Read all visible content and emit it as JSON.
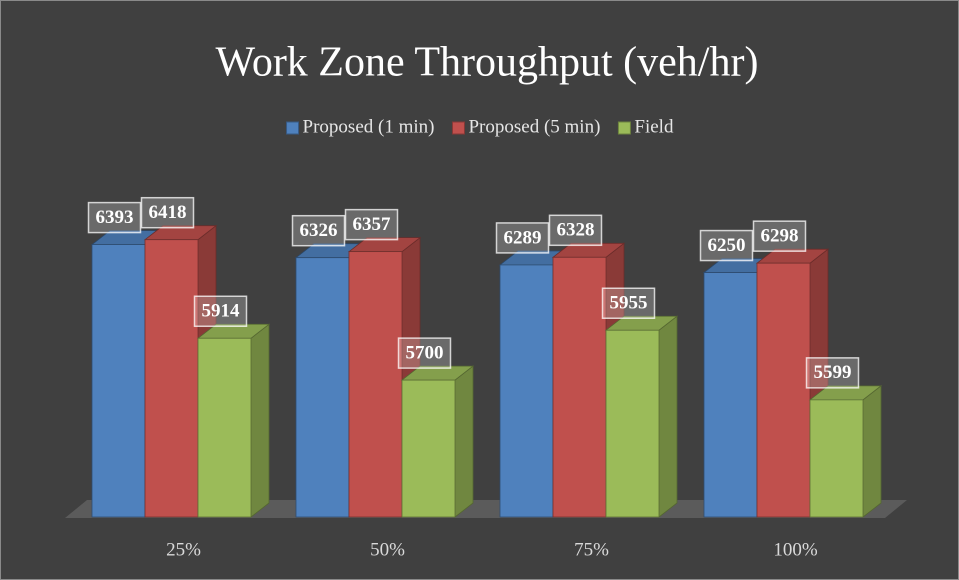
{
  "chart_data": {
    "type": "bar3d",
    "title": "Work Zone Throughput (veh/hr)",
    "categories": [
      "25%",
      "50%",
      "75%",
      "100%"
    ],
    "series": [
      {
        "name": "Proposed (1 min)",
        "color": "#4f81bd",
        "values": [
          6393,
          6326,
          6289,
          6250
        ]
      },
      {
        "name": "Proposed (5 min)",
        "color": "#c0504d",
        "values": [
          6418,
          6357,
          6328,
          6298
        ]
      },
      {
        "name": "Field",
        "color": "#9bbb59",
        "values": [
          5914,
          5700,
          5955,
          5599
        ]
      }
    ],
    "ylim": [
      5000,
      6800
    ],
    "legend": "top"
  }
}
